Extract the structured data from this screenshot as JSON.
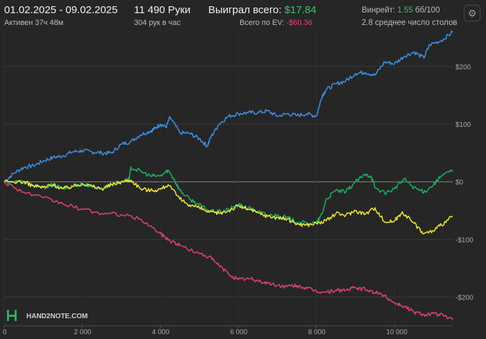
{
  "header": {
    "date_range": "01.02.2025 - 09.02.2025",
    "active": "Активен 37ч 48м",
    "hands": "11 490 Руки",
    "hands_per_hour": "304 рук в час",
    "won_label": "Выиграл всего:",
    "won_value": "$17.84",
    "ev_label": "Всего по EV:",
    "ev_value": "-$60.36",
    "winrate_label": "Винрейт:",
    "winrate_value": "1.55",
    "winrate_unit": "бб/100",
    "tables": "2.8 среднее число столов",
    "settings_icon": "gear-icon"
  },
  "logo": {
    "text": "HAND2NOTE.COM"
  },
  "chart_data": {
    "type": "line",
    "x_ticks": [
      "0",
      "2 000",
      "4 000",
      "6 000",
      "8 000",
      "10 000"
    ],
    "y_ticks": [
      "$200",
      "$100",
      "$0",
      "-$100",
      "-$200"
    ],
    "xlim": [
      0,
      11490
    ],
    "ylim": [
      -250,
      265
    ],
    "grid": "horizontal",
    "colors": {
      "blue": "#3d8de0",
      "green": "#1faa63",
      "yellow": "#e8e33a",
      "red": "#d9436e"
    },
    "series": [
      {
        "color": "#3d8de0",
        "points": [
          [
            0,
            0
          ],
          [
            250,
            15
          ],
          [
            500,
            25
          ],
          [
            750,
            28
          ],
          [
            1000,
            36
          ],
          [
            1250,
            42
          ],
          [
            1500,
            45
          ],
          [
            1750,
            52
          ],
          [
            2000,
            54
          ],
          [
            2250,
            52
          ],
          [
            2500,
            50
          ],
          [
            2750,
            50
          ],
          [
            3000,
            65
          ],
          [
            3250,
            70
          ],
          [
            3500,
            82
          ],
          [
            3750,
            88
          ],
          [
            3850,
            92
          ],
          [
            4000,
            100
          ],
          [
            4150,
            95
          ],
          [
            4250,
            112
          ],
          [
            4500,
            85
          ],
          [
            4750,
            84
          ],
          [
            5000,
            75
          ],
          [
            5200,
            62
          ],
          [
            5300,
            78
          ],
          [
            5500,
            100
          ],
          [
            5750,
            114
          ],
          [
            6000,
            118
          ],
          [
            6250,
            120
          ],
          [
            6500,
            120
          ],
          [
            6750,
            123
          ],
          [
            7000,
            114
          ],
          [
            7250,
            118
          ],
          [
            7500,
            115
          ],
          [
            7750,
            118
          ],
          [
            8000,
            114
          ],
          [
            8150,
            150
          ],
          [
            8250,
            160
          ],
          [
            8500,
            170
          ],
          [
            8750,
            175
          ],
          [
            9000,
            188
          ],
          [
            9250,
            190
          ],
          [
            9500,
            185
          ],
          [
            9750,
            208
          ],
          [
            10000,
            205
          ],
          [
            10250,
            218
          ],
          [
            10500,
            225
          ],
          [
            10750,
            215
          ],
          [
            10900,
            238
          ],
          [
            11200,
            245
          ],
          [
            11490,
            260
          ]
        ]
      },
      {
        "color": "#1faa63",
        "points": [
          [
            0,
            0
          ],
          [
            500,
            0
          ],
          [
            750,
            -7
          ],
          [
            1000,
            -10
          ],
          [
            1250,
            -5
          ],
          [
            1500,
            -12
          ],
          [
            1750,
            -8
          ],
          [
            2000,
            -3
          ],
          [
            2250,
            -8
          ],
          [
            2500,
            -12
          ],
          [
            2750,
            -5
          ],
          [
            3000,
            0
          ],
          [
            3200,
            5
          ],
          [
            3250,
            25
          ],
          [
            3500,
            18
          ],
          [
            3750,
            10
          ],
          [
            4000,
            10
          ],
          [
            4200,
            20
          ],
          [
            4350,
            5
          ],
          [
            4500,
            -15
          ],
          [
            4750,
            -30
          ],
          [
            5000,
            -40
          ],
          [
            5250,
            -50
          ],
          [
            5500,
            -52
          ],
          [
            5750,
            -48
          ],
          [
            6000,
            -40
          ],
          [
            6250,
            -45
          ],
          [
            6500,
            -52
          ],
          [
            6750,
            -58
          ],
          [
            7000,
            -58
          ],
          [
            7250,
            -62
          ],
          [
            7500,
            -70
          ],
          [
            7750,
            -72
          ],
          [
            8000,
            -72
          ],
          [
            8150,
            -55
          ],
          [
            8250,
            -30
          ],
          [
            8500,
            -15
          ],
          [
            8750,
            -18
          ],
          [
            9000,
            0
          ],
          [
            9250,
            12
          ],
          [
            9400,
            10
          ],
          [
            9500,
            -10
          ],
          [
            9750,
            -20
          ],
          [
            10000,
            -12
          ],
          [
            10250,
            5
          ],
          [
            10500,
            -10
          ],
          [
            10750,
            -18
          ],
          [
            11000,
            -5
          ],
          [
            11200,
            10
          ],
          [
            11490,
            20
          ]
        ]
      },
      {
        "color": "#e8e33a",
        "points": [
          [
            0,
            0
          ],
          [
            500,
            0
          ],
          [
            750,
            -7
          ],
          [
            1000,
            -10
          ],
          [
            1250,
            -5
          ],
          [
            1500,
            -12
          ],
          [
            1750,
            -8
          ],
          [
            2000,
            -3
          ],
          [
            2250,
            -8
          ],
          [
            2500,
            -12
          ],
          [
            2750,
            -5
          ],
          [
            3000,
            0
          ],
          [
            3250,
            3
          ],
          [
            3500,
            -12
          ],
          [
            3750,
            -15
          ],
          [
            4000,
            -13
          ],
          [
            4200,
            -5
          ],
          [
            4500,
            -30
          ],
          [
            4750,
            -40
          ],
          [
            5000,
            -45
          ],
          [
            5250,
            -53
          ],
          [
            5500,
            -55
          ],
          [
            5750,
            -50
          ],
          [
            6000,
            -42
          ],
          [
            6250,
            -47
          ],
          [
            6500,
            -54
          ],
          [
            6750,
            -60
          ],
          [
            7000,
            -62
          ],
          [
            7250,
            -65
          ],
          [
            7500,
            -73
          ],
          [
            7750,
            -75
          ],
          [
            8000,
            -72
          ],
          [
            8250,
            -68
          ],
          [
            8500,
            -55
          ],
          [
            8750,
            -58
          ],
          [
            9000,
            -50
          ],
          [
            9250,
            -56
          ],
          [
            9500,
            -45
          ],
          [
            9750,
            -70
          ],
          [
            10000,
            -68
          ],
          [
            10200,
            -52
          ],
          [
            10500,
            -72
          ],
          [
            10750,
            -90
          ],
          [
            11000,
            -85
          ],
          [
            11200,
            -75
          ],
          [
            11490,
            -60
          ]
        ]
      },
      {
        "color": "#d9436e",
        "points": [
          [
            0,
            0
          ],
          [
            500,
            -18
          ],
          [
            1000,
            -28
          ],
          [
            1500,
            -38
          ],
          [
            2000,
            -48
          ],
          [
            2500,
            -55
          ],
          [
            3000,
            -57
          ],
          [
            3500,
            -65
          ],
          [
            4000,
            -90
          ],
          [
            4250,
            -102
          ],
          [
            4500,
            -110
          ],
          [
            5000,
            -125
          ],
          [
            5250,
            -130
          ],
          [
            5500,
            -145
          ],
          [
            5750,
            -160
          ],
          [
            6000,
            -170
          ],
          [
            6250,
            -168
          ],
          [
            6500,
            -172
          ],
          [
            6750,
            -176
          ],
          [
            7000,
            -180
          ],
          [
            7250,
            -182
          ],
          [
            7500,
            -180
          ],
          [
            7750,
            -185
          ],
          [
            8000,
            -190
          ],
          [
            8250,
            -192
          ],
          [
            8500,
            -188
          ],
          [
            8750,
            -188
          ],
          [
            9000,
            -184
          ],
          [
            9250,
            -187
          ],
          [
            9500,
            -192
          ],
          [
            9750,
            -198
          ],
          [
            10000,
            -210
          ],
          [
            10250,
            -216
          ],
          [
            10500,
            -226
          ],
          [
            10750,
            -230
          ],
          [
            11000,
            -229
          ],
          [
            11250,
            -232
          ],
          [
            11490,
            -240
          ]
        ]
      }
    ]
  }
}
